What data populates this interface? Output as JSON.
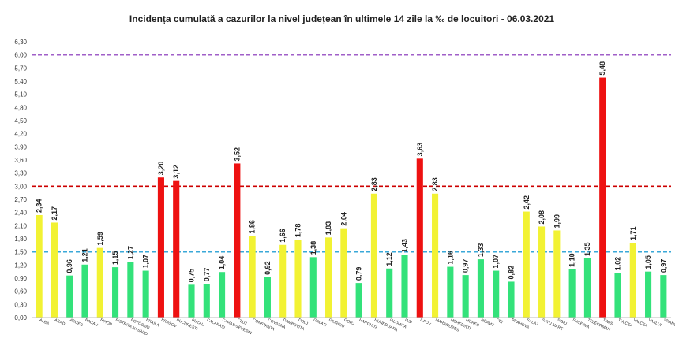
{
  "chart_data": {
    "type": "bar",
    "title": "Incidența cumulată a cazurilor la nivel județean în ultimele 14 zile la ‰ de locuitori - 06.03.2021",
    "xlabel": "",
    "ylabel": "",
    "ylim": [
      0,
      6.3
    ],
    "yticks": [
      "0,00",
      "0,30",
      "0,60",
      "0,90",
      "1,20",
      "1,50",
      "1,80",
      "2,10",
      "2,40",
      "2,70",
      "3,00",
      "3,30",
      "3,60",
      "3,90",
      "4,20",
      "4,50",
      "4,80",
      "5,10",
      "5,40",
      "5,70",
      "6,00",
      "6,30"
    ],
    "grid": false,
    "categories": [
      "ALBA",
      "ARAD",
      "ARGES",
      "BACAU",
      "BIHOR",
      "BISTRITA NASAUD",
      "BOTOSANI",
      "BRAILA",
      "BRASOV",
      "BUCURESTI",
      "BUZAU",
      "CALARASI",
      "CARAS-SEVERIN",
      "CLUJ",
      "CONSTANTA",
      "COVASNA",
      "DAMBOVITA",
      "DOLJ",
      "GALATI",
      "GIURGIU",
      "GORJ",
      "HARGHITA",
      "HUNEDOARA",
      "IALOMITA",
      "IASI",
      "ILFOV",
      "MARAMURES",
      "MEHEDINTI",
      "MURES",
      "NEAMT",
      "OLT",
      "PRAHOVA",
      "SALAJ",
      "SATU MARE",
      "SIBIU",
      "SUCEAVA",
      "TELEORMAN",
      "TIMIS",
      "TULCEA",
      "VALCEA",
      "VASLUI",
      "VRANCEA"
    ],
    "values": [
      2.34,
      2.17,
      0.96,
      1.21,
      1.59,
      1.15,
      1.27,
      1.07,
      3.2,
      3.12,
      0.75,
      0.77,
      1.04,
      3.52,
      1.86,
      0.92,
      1.66,
      1.78,
      1.38,
      1.83,
      2.04,
      0.79,
      2.83,
      1.12,
      1.43,
      3.63,
      2.83,
      1.16,
      0.97,
      1.33,
      1.07,
      0.82,
      2.42,
      2.08,
      1.99,
      1.1,
      1.35,
      5.48,
      1.02,
      1.71,
      1.05,
      0.97
    ],
    "data_labels": [
      "2,34",
      "2,17",
      "0,96",
      "1,21",
      "1,59",
      "1,15",
      "1,27",
      "1,07",
      "3,20",
      "3,12",
      "0,75",
      "0,77",
      "1,04",
      "3,52",
      "1,86",
      "0,92",
      "1,66",
      "1,78",
      "1,38",
      "1,83",
      "2,04",
      "0,79",
      "2,83",
      "1,12",
      "1,43",
      "3,63",
      "2,83",
      "1,16",
      "0,97",
      "1,33",
      "1,07",
      "0,82",
      "2,42",
      "2,08",
      "1,99",
      "1,10",
      "1,35",
      "5,48",
      "1,02",
      "1,71",
      "1,05",
      "0,97"
    ],
    "thresholds": [
      {
        "value": 6.0,
        "color": "#a05fc8",
        "style": "dashed"
      },
      {
        "value": 3.0,
        "color": "#cc0000",
        "style": "dashed"
      },
      {
        "value": 1.5,
        "color": "#3aa8d8",
        "style": "dashed"
      }
    ],
    "colors": {
      "low": "#33e27a",
      "mid": "#f2f233",
      "high": "#ee1111"
    }
  }
}
